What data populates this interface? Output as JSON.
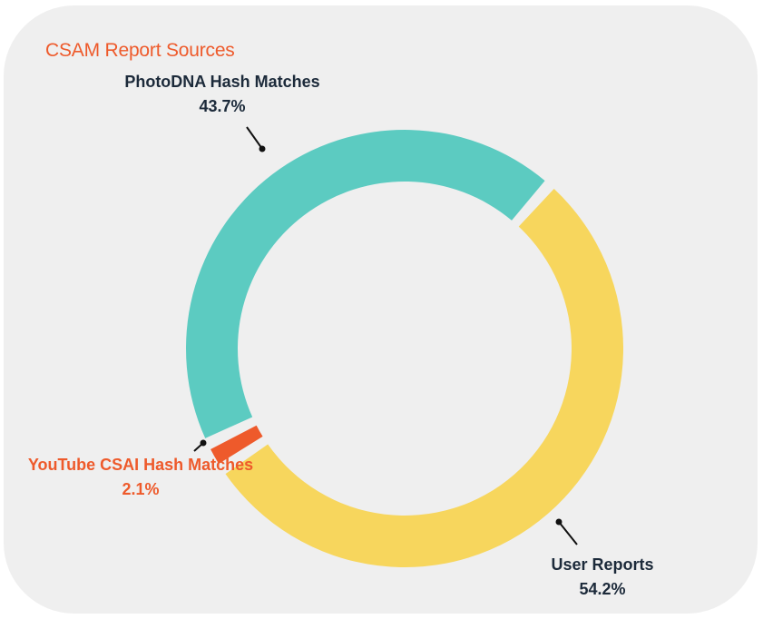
{
  "colors": {
    "background": "#efefef",
    "title": "#ee5a2b",
    "label_dark": "#1c2a3a",
    "label_accent": "#ee5a2b",
    "leader": "#111111"
  },
  "chart_data": {
    "type": "pie",
    "variant": "donut",
    "title": "CSAM Report Sources",
    "series": [
      {
        "name": "User Reports",
        "value": 54.2,
        "display": "54.2%",
        "color": "#f7d65d",
        "label_color": "#1c2a3a"
      },
      {
        "name": "YouTube CSAI Hash Matches",
        "value": 2.1,
        "display": "2.1%",
        "color": "#ee5a2b",
        "label_color": "#ee5a2b"
      },
      {
        "name": "PhotoDNA Hash Matches",
        "value": 43.7,
        "display": "43.7%",
        "color": "#5ccbc1",
        "label_color": "#1c2a3a"
      }
    ]
  }
}
